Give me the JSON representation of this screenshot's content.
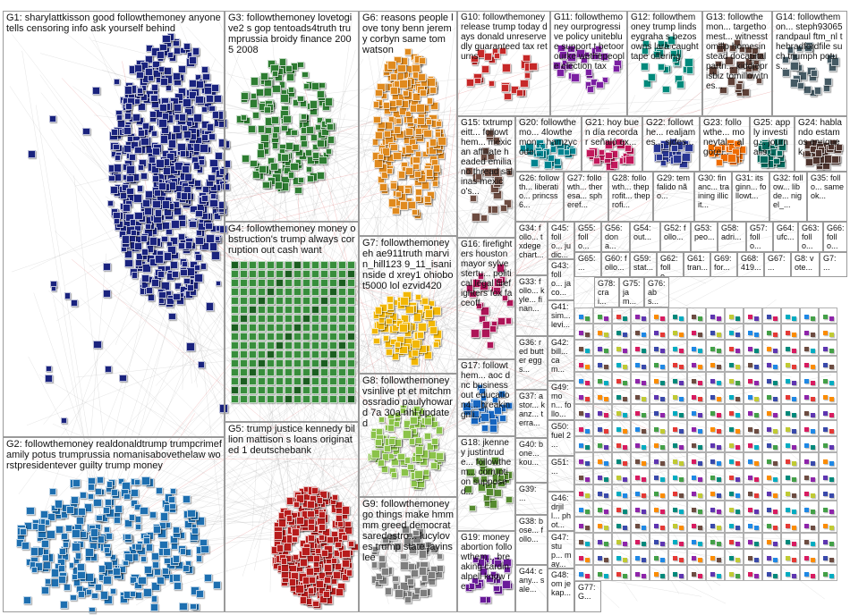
{
  "groups": [
    {
      "id": "G1",
      "label": "G1: sharylattkisson good followthemoney anyone tells censoring info ask yourself behind",
      "color": "#1a237e"
    },
    {
      "id": "G2",
      "label": "G2: followthemoney realdonaldtrump trumpcrimefamily potus trumprussia nomanisabovethelaw worstpresidentever guilty trump money",
      "color": "#1e6fb0"
    },
    {
      "id": "G3",
      "label": "G3: followthemoney lovetogive2 s gop tentoads4truth trumprussia broidy finance 2005 2008",
      "color": "#2e7d32"
    },
    {
      "id": "G4",
      "label": "G4: followthemoney money obstruction's trump always corruption out cash want",
      "color": "#388e3c"
    },
    {
      "id": "G5",
      "label": "G5: trump justice kennedy billion mattison s loans originated 1 deutschebank",
      "color": "#b71c1c"
    },
    {
      "id": "G6",
      "label": "G6: reasons people love tony benn jeremy corbyn same tom watson",
      "color": "#e08a1e"
    },
    {
      "id": "G7",
      "label": "G7: followthemoney eh ae911truth marvin_hill123 9_11_isaninside d xrey1 ohiobot5000 lol ezvid420",
      "color": "#f2b705"
    },
    {
      "id": "G8",
      "label": "G8: followthemoney vsinlive pt et mitchmossradio paulyhoward 7a 30a nhl updated",
      "color": "#8bc34a"
    },
    {
      "id": "G9",
      "label": "G9: followthemoney go things make hmmmm greed democratsaredestro... lucyloves trump state jayinslee",
      "color": "#9e9e9e"
    },
    {
      "id": "G10",
      "label": "G10: followthemoney release trump today days donald unreservedly guaranteed tax returns",
      "color": "#c62828"
    },
    {
      "id": "G11",
      "label": "G11: followthemoney ourprogressive policy unitebluе support t betoorourke wethepeople election tax",
      "color": "#7b1fa2"
    },
    {
      "id": "G12",
      "label": "G12: followthemoney trump lindseygraha s bezos owns lara caught tape offering",
      "color": "#00897b"
    },
    {
      "id": "G13",
      "label": "G13: followthemon... targethomest... witnesstomillo homesinstead docapitalpartn... kiddieprisbiz tomillowitnes...",
      "color": "#5d4037"
    },
    {
      "id": "G14",
      "label": "G14: followthemon... steph93065 randpaul ftm_nl thebradfordfile such triumph potus...",
      "color": "#455a64"
    },
    {
      "id": "G15",
      "label": "G15: txtrumpeitt... followthem... mexican affiliate headed emiliano thread salinas mexico's...",
      "color": "#6d4c41"
    },
    {
      "id": "G16",
      "label": "G16: firefighters houston mayor sylvestertu... political legal firefighters fox faceoff",
      "color": "#ad1457"
    },
    {
      "id": "G17",
      "label": "G17: followthem... aoc dnc business out education4... breakingnli...",
      "color": "#1565c0"
    },
    {
      "id": "G18",
      "label": "G18: jkenney justintrude... followthem... corruption supposed...",
      "color": "#558b2f"
    },
    {
      "id": "G19",
      "label": "G19: money abortion followthem... breaking cardinalpell know re...",
      "color": "#6a1b9a"
    },
    {
      "id": "G20",
      "label": "G20: followthemo... 4lowthemon... hamzycode...",
      "color": "#00838f"
    },
    {
      "id": "G21",
      "label": "G21: hoy buen día recordar señaló ex...",
      "color": "#c2185b"
    },
    {
      "id": "G22",
      "label": "G22: followthe... realjames... sides...",
      "color": "#283593"
    },
    {
      "id": "G23",
      "label": "G23: followthe... moneytal... algore...",
      "color": "#ef6c00"
    },
    {
      "id": "G24",
      "label": "G24: hablando estamos enriquek...",
      "color": "#4e342e"
    },
    {
      "id": "G25",
      "label": "G25: apply investig... journalis...",
      "color": "#00695c"
    },
    {
      "id": "G26",
      "label": "G26: followth... liberatio... princss6...",
      "color": "#1976d2"
    },
    {
      "id": "G27",
      "label": "G27: followth... theresa... spheref...",
      "color": "#7cb342"
    },
    {
      "id": "G28",
      "label": "G28: followth... theprofit... theprofi...",
      "color": "#d84315"
    },
    {
      "id": "G29",
      "label": "G29: tem falido não...",
      "color": "#43a047"
    },
    {
      "id": "G30",
      "label": "G30: financ... training illicit...",
      "color": "#8e24aa"
    },
    {
      "id": "G31",
      "label": "G31: itsginn... followt...",
      "color": "#039be5"
    },
    {
      "id": "G32",
      "label": "G32: follow... libde... nigel_...",
      "color": "#fbc02d"
    },
    {
      "id": "G35",
      "label": "G35: follo... same ok...",
      "color": "#5e35b1"
    },
    {
      "id": "G34",
      "label": "G34: follo... txdege chart...",
      "color": "#2e7d32"
    },
    {
      "id": "G45",
      "label": "G45: follo... judic...",
      "color": "#e53935"
    },
    {
      "id": "G55",
      "label": "G55: follo...",
      "color": "#3949ab"
    },
    {
      "id": "G56",
      "label": "G56: dona...",
      "color": "#00acc1"
    },
    {
      "id": "G54",
      "label": "G54: out...",
      "color": "#6d4c41"
    },
    {
      "id": "G52",
      "label": "G52: follo...",
      "color": "#43a047"
    },
    {
      "id": "G53",
      "label": "G53: peo...",
      "color": "#d81b60"
    },
    {
      "id": "G58",
      "label": "G58: adri...",
      "color": "#8d6e63"
    },
    {
      "id": "G57",
      "label": "G57: follo...",
      "color": "#1e88e5"
    },
    {
      "id": "G64",
      "label": "G64: ufc...",
      "color": "#f4511e"
    },
    {
      "id": "G63",
      "label": "G63: follo...",
      "color": "#7e57c2"
    },
    {
      "id": "G66",
      "label": "G66: follo...",
      "color": "#26a69a"
    },
    {
      "id": "G33",
      "label": "G33: follo... kyle... finan...",
      "color": "#5c6bc0"
    },
    {
      "id": "G43",
      "label": "G43: follo... jaco...",
      "color": "#9ccc65"
    },
    {
      "id": "G41",
      "label": "G41: sim... levi...",
      "color": "#ff7043"
    },
    {
      "id": "G36",
      "label": "G36: red butter eggs...",
      "color": "#c0ca33"
    },
    {
      "id": "G42",
      "label": "G42: bill... cam...",
      "color": "#ab47bc"
    },
    {
      "id": "G37",
      "label": "G37: astor... kanz... terra...",
      "color": "#29b6f6"
    },
    {
      "id": "G49",
      "label": "G49: mon... follo...",
      "color": "#66bb6a"
    },
    {
      "id": "G50",
      "label": "G50: fuel 2 ...",
      "color": "#ffa726"
    },
    {
      "id": "G40",
      "label": "G40: bone... kou...",
      "color": "#8d6e63"
    },
    {
      "id": "G51",
      "label": "G51: ...",
      "color": "#42a5f5"
    },
    {
      "id": "G39",
      "label": "G39: ...",
      "color": "#ec407a"
    },
    {
      "id": "G46",
      "label": "G46: drjill... phot...",
      "color": "#26c6da"
    },
    {
      "id": "G38",
      "label": "G38: bose... follo...",
      "color": "#d4e157"
    },
    {
      "id": "G47",
      "label": "G47: stup... may...",
      "color": "#7e57c2"
    },
    {
      "id": "G44",
      "label": "G44: cany... sale...",
      "color": "#ef5350"
    },
    {
      "id": "G48",
      "label": "G48: om je kap...",
      "color": "#78909c"
    },
    {
      "id": "G65",
      "label": "G65: ...",
      "color": "#5d4037"
    },
    {
      "id": "G60",
      "label": "G60: follo...",
      "color": "#ff8a65"
    },
    {
      "id": "G59",
      "label": "G59: stat...",
      "color": "#4db6ac"
    },
    {
      "id": "G62",
      "label": "G62: follo...",
      "color": "#9575cd"
    },
    {
      "id": "G61",
      "label": "G61: tran...",
      "color": "#f06292"
    },
    {
      "id": "G69",
      "label": "G69: for...",
      "color": "#81c784"
    },
    {
      "id": "G68",
      "label": "G68: 419...",
      "color": "#64b5f6"
    },
    {
      "id": "G67",
      "label": "G67: ...",
      "color": "#ffb74d"
    },
    {
      "id": "G8x",
      "label": "G8: vote...",
      "color": "#a1887f"
    },
    {
      "id": "G7x",
      "label": "G7: ...",
      "color": "#90a4ae"
    },
    {
      "id": "G78",
      "label": "G78: crai...",
      "color": "#e57373"
    },
    {
      "id": "G75",
      "label": "G75: jam...",
      "color": "#4fc3f7"
    },
    {
      "id": "G76",
      "label": "G76: abs...",
      "color": "#aed581"
    },
    {
      "id": "G77",
      "label": "G77: G...",
      "color": "#ba68c8"
    }
  ]
}
